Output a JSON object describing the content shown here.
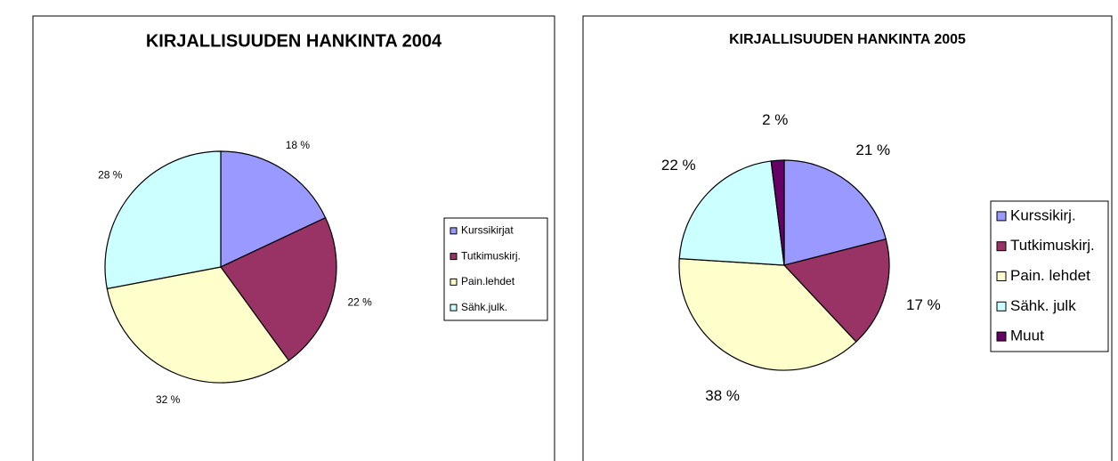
{
  "chart_data": [
    {
      "type": "pie",
      "title": "KIRJALLISUUDEN HANKINTA 2004",
      "categories": [
        "Kurssikirjat",
        "Tutkimuskirj.",
        "Pain.lehdet",
        "Sähk.julk."
      ],
      "values": [
        18,
        22,
        32,
        28
      ],
      "value_labels": [
        "18 %",
        "22 %",
        "32 %",
        "28 %"
      ],
      "colors": [
        "#9999ff",
        "#993366",
        "#ffffcc",
        "#ccffff"
      ],
      "legend": "right"
    },
    {
      "type": "pie",
      "title": "KIRJALLISUUDEN HANKINTA 2005",
      "categories": [
        "Kurssikirj.",
        "Tutkimuskirj.",
        "Pain. lehdet",
        "Sähk. julk",
        "Muut"
      ],
      "values": [
        21,
        17,
        38,
        22,
        2
      ],
      "value_labels": [
        "21 %",
        "17 %",
        "38 %",
        "22 %",
        "2 %"
      ],
      "colors": [
        "#9999ff",
        "#993366",
        "#ffffcc",
        "#ccffff",
        "#660066"
      ],
      "legend": "right"
    }
  ]
}
